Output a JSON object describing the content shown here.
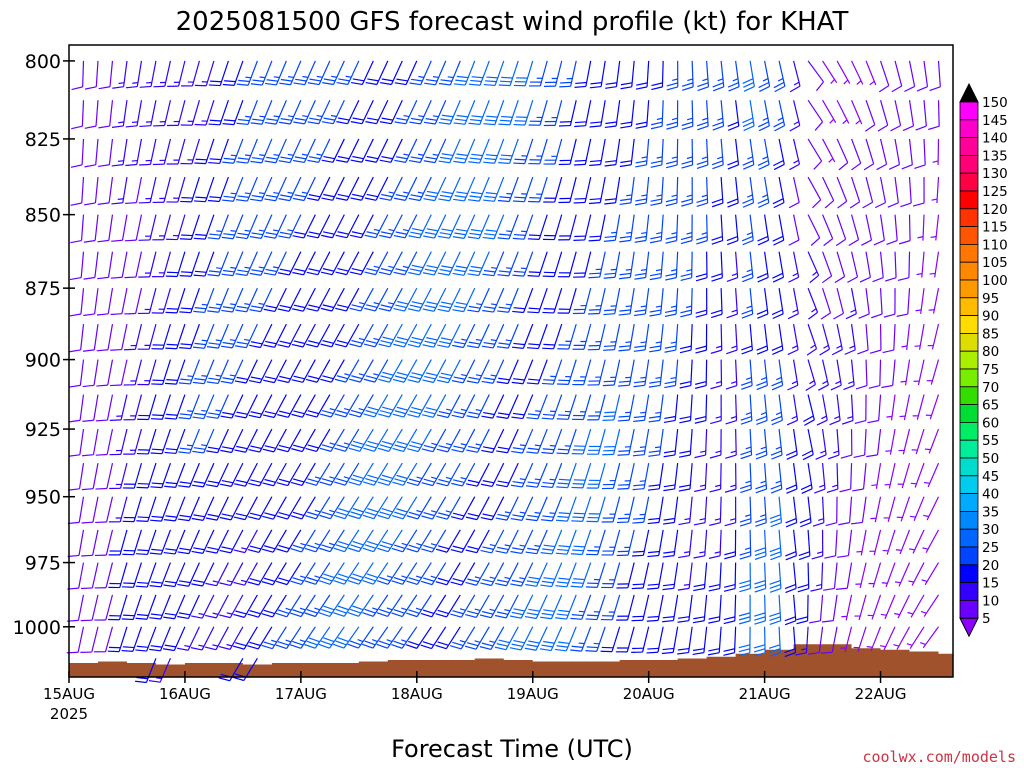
{
  "chart_data": {
    "type": "wind_profile",
    "title": "2025081500 GFS forecast wind profile (kt) for KHAT",
    "xlabel": "Forecast Time (UTC)",
    "ylabel": "",
    "credit": "coolwx.com/models",
    "x_ticks": [
      {
        "label": "15AUG",
        "sublabel": "2025",
        "hours": 0
      },
      {
        "label": "16AUG",
        "sublabel": "",
        "hours": 24
      },
      {
        "label": "17AUG",
        "sublabel": "",
        "hours": 48
      },
      {
        "label": "18AUG",
        "sublabel": "",
        "hours": 72
      },
      {
        "label": "19AUG",
        "sublabel": "",
        "hours": 96
      },
      {
        "label": "20AUG",
        "sublabel": "",
        "hours": 120
      },
      {
        "label": "21AUG",
        "sublabel": "",
        "hours": 144
      },
      {
        "label": "22AUG",
        "sublabel": "",
        "hours": 168
      }
    ],
    "xlim_hours": [
      0,
      183
    ],
    "time_step_hours": 3,
    "y_ticks": [
      "800",
      "825",
      "850",
      "875",
      "900",
      "925",
      "950",
      "975",
      "1000"
    ],
    "ylim_hPa": [
      795,
      1020
    ],
    "levels_hPa": [
      800,
      812.5,
      825,
      837.5,
      850,
      862.5,
      875,
      887.5,
      900,
      912.5,
      925,
      937.5,
      950,
      962.5,
      975,
      987.5,
      1000,
      1012.5
    ],
    "colorbar": {
      "labels": [
        "5",
        "10",
        "15",
        "20",
        "25",
        "30",
        "35",
        "40",
        "45",
        "50",
        "55",
        "60",
        "65",
        "70",
        "75",
        "80",
        "85",
        "90",
        "95",
        "100",
        "105",
        "110",
        "115",
        "120",
        "125",
        "130",
        "135",
        "140",
        "145",
        "150"
      ],
      "colors": [
        "#8b00ff",
        "#6a00ff",
        "#3300ff",
        "#0000ff",
        "#0044ff",
        "#0066ff",
        "#0088ff",
        "#00aaff",
        "#00ccee",
        "#00ddcc",
        "#00ee99",
        "#00ee66",
        "#00dd33",
        "#33dd00",
        "#77ee00",
        "#aaee00",
        "#dddd00",
        "#ffdd00",
        "#ffbb00",
        "#ff9900",
        "#ff8800",
        "#ff7700",
        "#ff5500",
        "#ff3300",
        "#ff0000",
        "#ff0044",
        "#ff0077",
        "#ff0099",
        "#ff00cc",
        "#ff00ff"
      ],
      "top_arrow_color": "#000000",
      "bottom_arrow_color": "#8b00ff"
    },
    "terrain_color": "#a0522d",
    "terrain_pressure_hPa": [
      [
        0,
        1014.4
      ],
      [
        6,
        1013.8
      ],
      [
        12,
        1014.4
      ],
      [
        18,
        1015.0
      ],
      [
        24,
        1014.4
      ],
      [
        30,
        1014.4
      ],
      [
        36,
        1015.0
      ],
      [
        42,
        1014.4
      ],
      [
        48,
        1014.4
      ],
      [
        54,
        1014.4
      ],
      [
        60,
        1013.8
      ],
      [
        66,
        1013.2
      ],
      [
        72,
        1013.2
      ],
      [
        78,
        1013.2
      ],
      [
        84,
        1012.6
      ],
      [
        90,
        1013.2
      ],
      [
        96,
        1013.8
      ],
      [
        102,
        1013.8
      ],
      [
        108,
        1013.8
      ],
      [
        114,
        1013.2
      ],
      [
        120,
        1013.2
      ],
      [
        126,
        1012.6
      ],
      [
        132,
        1011.9
      ],
      [
        138,
        1010.7
      ],
      [
        144,
        1009.1
      ],
      [
        150,
        1006.9
      ],
      [
        156,
        1006.9
      ],
      [
        162,
        1008.5
      ],
      [
        168,
        1009.1
      ],
      [
        174,
        1009.8
      ],
      [
        180,
        1010.7
      ],
      [
        183,
        1011.3
      ]
    ]
  }
}
